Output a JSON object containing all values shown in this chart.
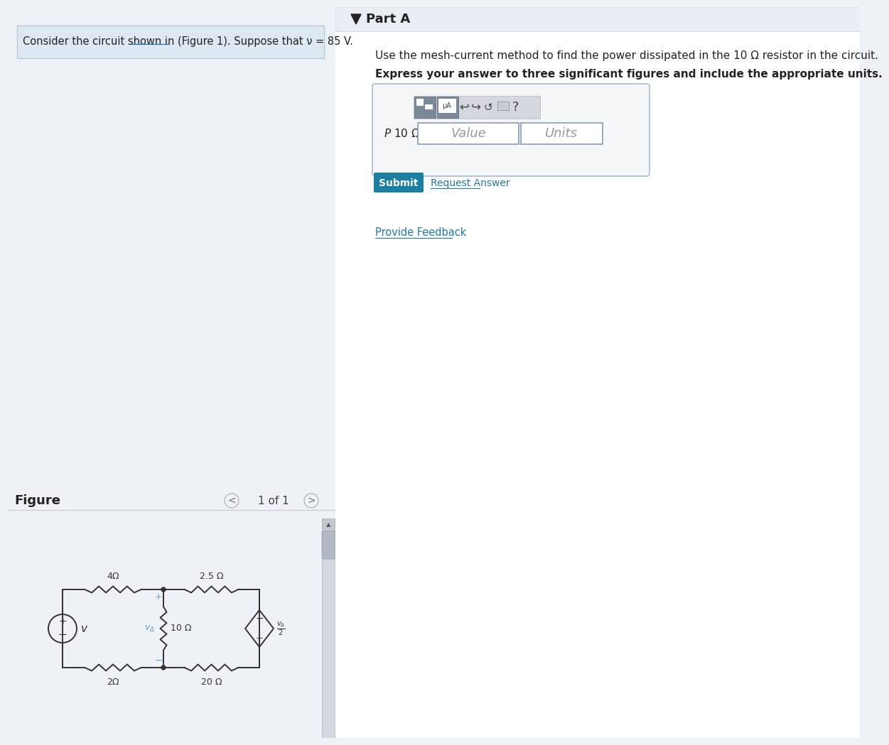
{
  "bg_left": "#eef2f6",
  "bg_right": "#ffffff",
  "part_a_bar_bg": "#e8eef4",
  "part_a_bar_border": "#d0d8e0",
  "problem_box_bg": "#dde8f2",
  "problem_box_border": "#b8ccd8",
  "teal_btn": "#1a7fa0",
  "link_blue": "#2277aa",
  "border_gray": "#c0c8d0",
  "text_dark": "#222222",
  "text_med": "#444444",
  "text_light": "#888888",
  "circuit_color": "#333333",
  "vdelta_color": "#6699cc",
  "fig_label": "Figure",
  "fig_nav": "1 of 1",
  "problem_text_1": "Consider the circuit shown in (Figure 1). Suppose that ",
  "problem_text_v": "v",
  "problem_text_2": " = 85 V.",
  "part_a_label": "Part A",
  "instruction1": "Use the mesh-current method to find the power dissipated in the 10 Ω resistor in the circuit.",
  "instruction2": "Express your answer to three significant figures and include the appropriate units.",
  "value_placeholder": "Value",
  "units_placeholder": "Units",
  "submit_text": "Submit",
  "request_answer_text": "Request Answer",
  "provide_feedback_text": "Provide Feedback",
  "scrollbar_bg": "#d4d8de",
  "scrollbar_thumb": "#b0b8c4"
}
